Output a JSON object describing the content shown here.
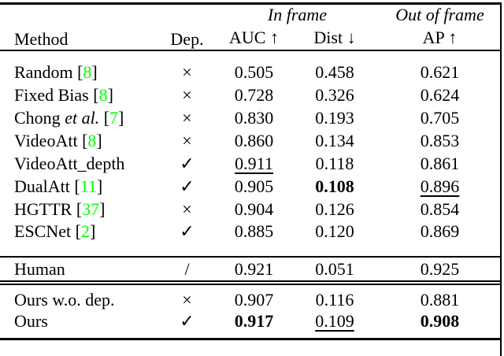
{
  "page": {
    "background": "#ffffff",
    "text_color": "#000000",
    "citation_color": "#00ff00"
  },
  "table": {
    "header": {
      "method": "Method",
      "dep": "Dep.",
      "in_frame": "In frame",
      "out_of_frame": "Out of frame",
      "auc": "AUC ↑",
      "dist": "Dist ↓",
      "ap": "AP ↑"
    },
    "rows_main": [
      {
        "name": "Random",
        "cite_open": " [",
        "cite_num": "8",
        "cite_close": "]",
        "dep": "×",
        "auc": {
          "t": "0.505",
          "s": ""
        },
        "dist": {
          "t": "0.458",
          "s": ""
        },
        "ap": {
          "t": "0.621",
          "s": ""
        }
      },
      {
        "name": "Fixed Bias",
        "cite_open": " [",
        "cite_num": "8",
        "cite_close": "]",
        "dep": "×",
        "auc": {
          "t": "0.728",
          "s": ""
        },
        "dist": {
          "t": "0.326",
          "s": ""
        },
        "ap": {
          "t": "0.624",
          "s": ""
        }
      },
      {
        "name": "Chong ",
        "etal": "et al.",
        "cite_open": " [",
        "cite_num": "7",
        "cite_close": "]",
        "dep": "×",
        "auc": {
          "t": "0.830",
          "s": ""
        },
        "dist": {
          "t": "0.193",
          "s": ""
        },
        "ap": {
          "t": "0.705",
          "s": ""
        }
      },
      {
        "name": "VideoAtt",
        "cite_open": " [",
        "cite_num": "8",
        "cite_close": "]",
        "dep": "×",
        "auc": {
          "t": "0.860",
          "s": ""
        },
        "dist": {
          "t": "0.134",
          "s": ""
        },
        "ap": {
          "t": "0.853",
          "s": ""
        }
      },
      {
        "name": "VideoAtt_depth",
        "dep": "✓",
        "auc": {
          "t": "0.911",
          "s": "u"
        },
        "dist": {
          "t": "0.118",
          "s": ""
        },
        "ap": {
          "t": "0.861",
          "s": ""
        }
      },
      {
        "name": "DualAtt",
        "cite_open": " [",
        "cite_num": "11",
        "cite_close": "]",
        "dep": "✓",
        "auc": {
          "t": "0.905",
          "s": ""
        },
        "dist": {
          "t": "0.108",
          "s": "b"
        },
        "ap": {
          "t": "0.896",
          "s": "u"
        }
      },
      {
        "name": "HGTTR",
        "cite_open": " [",
        "cite_num": "37",
        "cite_close": "]",
        "dep": "×",
        "auc": {
          "t": "0.904",
          "s": ""
        },
        "dist": {
          "t": "0.126",
          "s": ""
        },
        "ap": {
          "t": "0.854",
          "s": ""
        }
      },
      {
        "name": "ESCNet",
        "cite_open": " [",
        "cite_num": "2",
        "cite_close": "]",
        "dep": "✓",
        "auc": {
          "t": "0.885",
          "s": ""
        },
        "dist": {
          "t": "0.120",
          "s": ""
        },
        "ap": {
          "t": "0.869",
          "s": ""
        }
      }
    ],
    "rows_human": [
      {
        "name": "Human",
        "dep": "/",
        "auc": {
          "t": "0.921",
          "s": ""
        },
        "dist": {
          "t": "0.051",
          "s": ""
        },
        "ap": {
          "t": "0.925",
          "s": ""
        }
      }
    ],
    "rows_ours": [
      {
        "name": "Ours w.o. dep.",
        "dep": "×",
        "auc": {
          "t": "0.907",
          "s": ""
        },
        "dist": {
          "t": "0.116",
          "s": ""
        },
        "ap": {
          "t": "0.881",
          "s": ""
        }
      },
      {
        "name": "Ours",
        "dep": "✓",
        "auc": {
          "t": "0.917",
          "s": "b"
        },
        "dist": {
          "t": "0.109",
          "s": "u"
        },
        "ap": {
          "t": "0.908",
          "s": "b"
        }
      }
    ]
  }
}
